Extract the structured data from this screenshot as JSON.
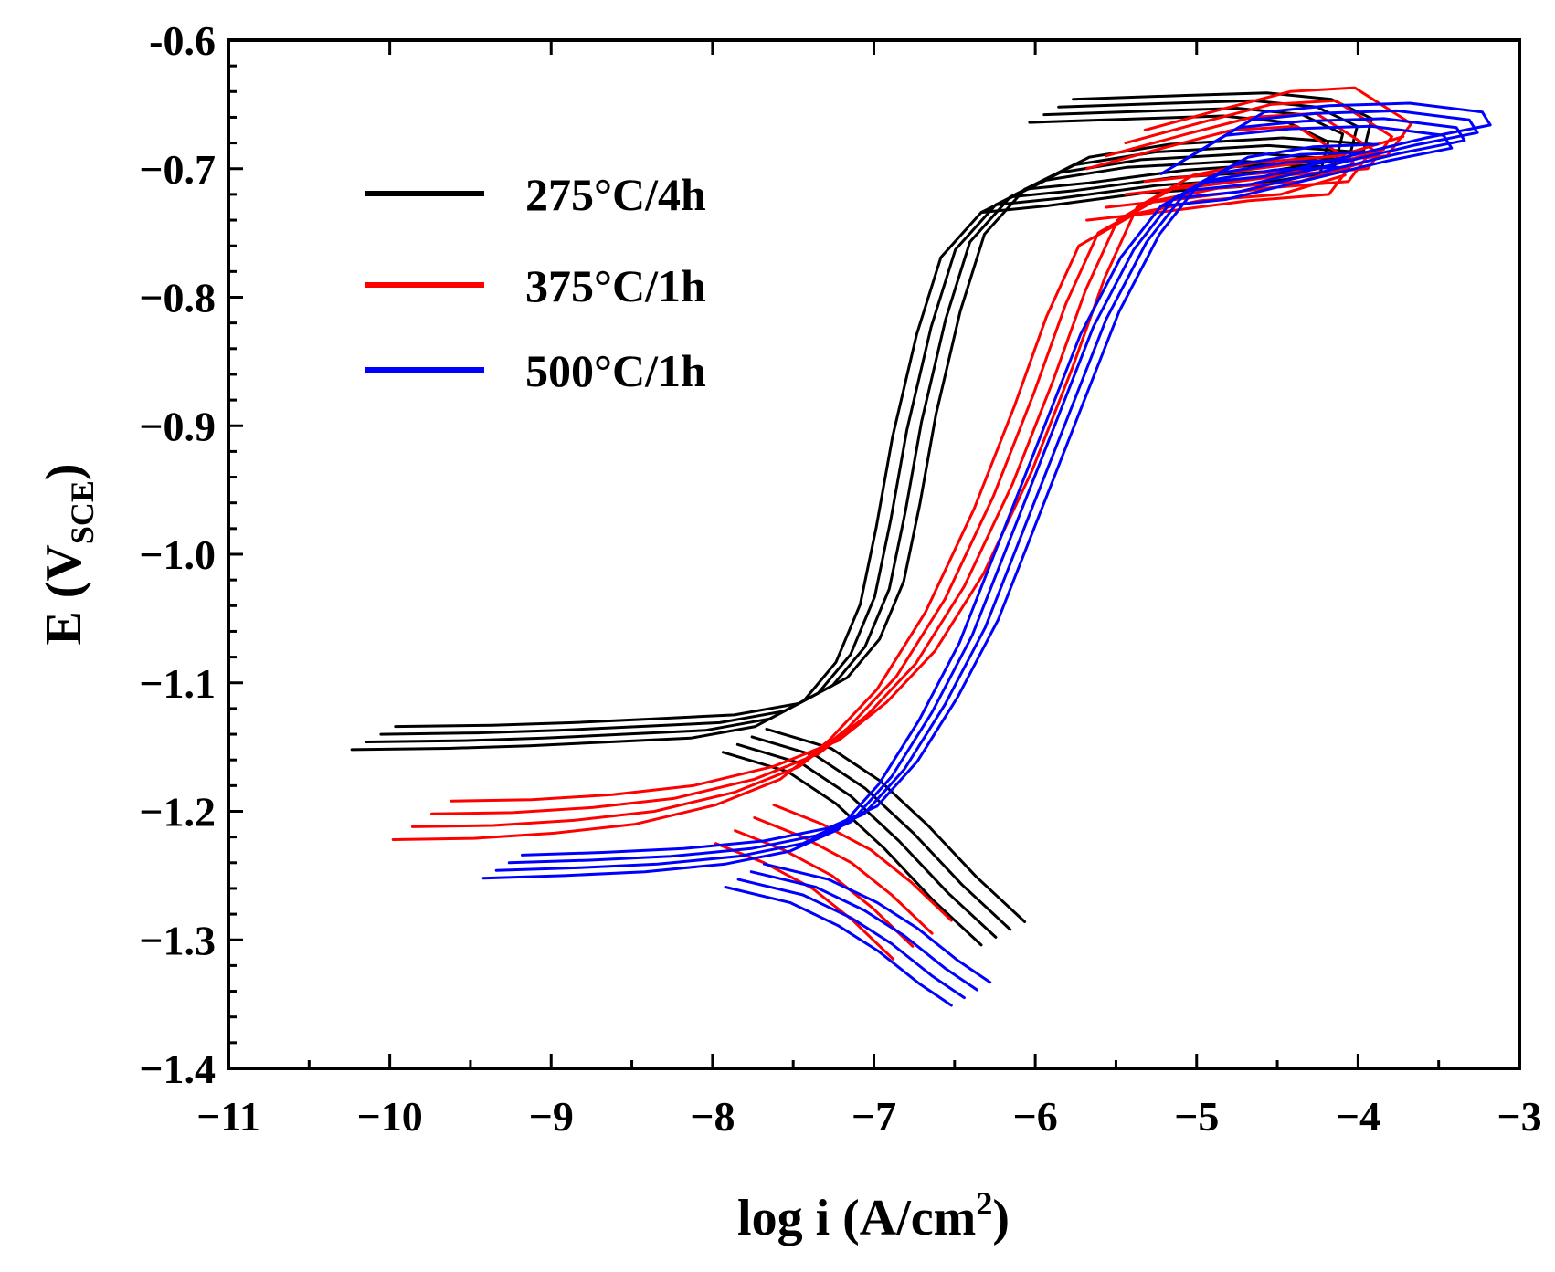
{
  "chart_data": {
    "type": "line",
    "title": "",
    "xlabel": "log i (A/cm²)",
    "xlabel_main": "log i (A/cm",
    "xlabel_sup": "2",
    "xlabel_close": ")",
    "ylabel": "E (V_SCE)",
    "ylabel_main": "E (V",
    "ylabel_sub": "SCE",
    "ylabel_close": ")",
    "xlim": [
      -11,
      -3
    ],
    "ylim": [
      -1.4,
      -0.6
    ],
    "xticks": [
      -11,
      -10,
      -9,
      -8,
      -7,
      -6,
      -5,
      -4,
      -3
    ],
    "xtick_labels": [
      "−11",
      "−10",
      "−9",
      "−8",
      "−7",
      "−6",
      "−5",
      "−4",
      "−3"
    ],
    "yticks": [
      -1.4,
      -1.3,
      -1.2,
      -1.1,
      -1.0,
      -0.9,
      -0.8,
      -0.7,
      -0.6
    ],
    "ytick_labels": [
      "−1.4",
      "−1.3",
      "−1.2",
      "−1.1",
      "−1.0",
      "−0.9",
      "−0.8",
      "−0.7",
      "-0.6"
    ],
    "legend_position": "upper-left",
    "series": [
      {
        "name": "275°C/4h",
        "color": "#000000",
        "repeats": 4,
        "spread_x": 0.09,
        "spread_y": 0.006,
        "anodic": [
          [
            -10.1,
            -1.143
          ],
          [
            -9.5,
            -1.142
          ],
          [
            -9.0,
            -1.14
          ],
          [
            -8.5,
            -1.137
          ],
          [
            -8.0,
            -1.134
          ],
          [
            -7.6,
            -1.125
          ],
          [
            -7.3,
            -1.105
          ],
          [
            -7.1,
            -1.075
          ],
          [
            -6.95,
            -1.03
          ],
          [
            -6.85,
            -0.97
          ],
          [
            -6.75,
            -0.9
          ],
          [
            -6.6,
            -0.82
          ],
          [
            -6.45,
            -0.76
          ],
          [
            -6.2,
            -0.725
          ],
          [
            -5.8,
            -0.7
          ],
          [
            -5.3,
            -0.69
          ],
          [
            -4.6,
            -0.685
          ],
          [
            -4.05,
            -0.69
          ]
        ],
        "cathodic": [
          [
            -7.8,
            -1.145
          ],
          [
            -7.4,
            -1.16
          ],
          [
            -7.1,
            -1.185
          ],
          [
            -6.8,
            -1.22
          ],
          [
            -6.5,
            -1.26
          ],
          [
            -6.2,
            -1.295
          ]
        ],
        "passive_loop": [
          [
            -5.9,
            -0.655
          ],
          [
            -5.2,
            -0.652
          ],
          [
            -4.7,
            -0.65
          ],
          [
            -4.3,
            -0.655
          ],
          [
            -4.05,
            -0.67
          ],
          [
            -4.1,
            -0.695
          ],
          [
            -4.6,
            -0.705
          ],
          [
            -5.2,
            -0.71
          ],
          [
            -5.8,
            -0.72
          ],
          [
            -6.2,
            -0.725
          ]
        ]
      },
      {
        "name": "375°C/1h",
        "color": "#ff0000",
        "repeats": 4,
        "spread_x": 0.12,
        "spread_y": 0.01,
        "anodic": [
          [
            -9.8,
            -1.207
          ],
          [
            -9.3,
            -1.206
          ],
          [
            -8.8,
            -1.202
          ],
          [
            -8.3,
            -1.195
          ],
          [
            -7.8,
            -1.18
          ],
          [
            -7.4,
            -1.16
          ],
          [
            -7.1,
            -1.13
          ],
          [
            -6.8,
            -1.09
          ],
          [
            -6.5,
            -1.03
          ],
          [
            -6.2,
            -0.95
          ],
          [
            -5.95,
            -0.87
          ],
          [
            -5.75,
            -0.8
          ],
          [
            -5.55,
            -0.745
          ],
          [
            -5.2,
            -0.72
          ],
          [
            -4.8,
            -0.71
          ],
          [
            -4.3,
            -0.705
          ],
          [
            -3.9,
            -0.69
          ]
        ],
        "cathodic": [
          [
            -7.8,
            -1.21
          ],
          [
            -7.5,
            -1.225
          ],
          [
            -7.2,
            -1.245
          ],
          [
            -6.95,
            -1.27
          ],
          [
            -6.7,
            -1.3
          ]
        ],
        "passive_loop": [
          [
            -5.5,
            -0.685
          ],
          [
            -5.0,
            -0.668
          ],
          [
            -4.6,
            -0.655
          ],
          [
            -4.2,
            -0.652
          ],
          [
            -3.85,
            -0.68
          ],
          [
            -4.0,
            -0.705
          ],
          [
            -4.5,
            -0.71
          ],
          [
            -5.0,
            -0.718
          ],
          [
            -5.5,
            -0.725
          ]
        ]
      },
      {
        "name": "500°C/1h",
        "color": "#0000ff",
        "repeats": 4,
        "spread_x": 0.08,
        "spread_y": 0.006,
        "anodic": [
          [
            -9.3,
            -1.243
          ],
          [
            -8.8,
            -1.241
          ],
          [
            -8.3,
            -1.238
          ],
          [
            -7.8,
            -1.232
          ],
          [
            -7.4,
            -1.222
          ],
          [
            -7.1,
            -1.205
          ],
          [
            -6.85,
            -1.17
          ],
          [
            -6.6,
            -1.12
          ],
          [
            -6.35,
            -1.06
          ],
          [
            -6.1,
            -0.98
          ],
          [
            -5.85,
            -0.9
          ],
          [
            -5.6,
            -0.82
          ],
          [
            -5.35,
            -0.76
          ],
          [
            -5.1,
            -0.72
          ],
          [
            -4.8,
            -0.7
          ],
          [
            -4.4,
            -0.692
          ],
          [
            -4.0,
            -0.69
          ]
        ],
        "cathodic": [
          [
            -7.8,
            -1.25
          ],
          [
            -7.4,
            -1.262
          ],
          [
            -7.1,
            -1.28
          ],
          [
            -6.85,
            -1.3
          ],
          [
            -6.6,
            -1.325
          ],
          [
            -6.4,
            -1.342
          ]
        ],
        "passive_loop": [
          [
            -5.1,
            -0.695
          ],
          [
            -4.7,
            -0.665
          ],
          [
            -4.3,
            -0.66
          ],
          [
            -3.8,
            -0.658
          ],
          [
            -3.35,
            -0.665
          ],
          [
            -3.3,
            -0.675
          ],
          [
            -3.7,
            -0.685
          ],
          [
            -4.2,
            -0.7
          ],
          [
            -4.7,
            -0.715
          ],
          [
            -5.1,
            -0.72
          ]
        ]
      }
    ]
  }
}
